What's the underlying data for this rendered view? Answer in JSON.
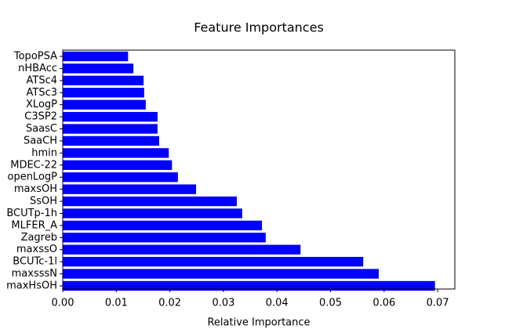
{
  "chart_data": {
    "type": "barh",
    "title": "Feature Importances",
    "x_label": "Relative Importance",
    "categories": [
      "TopoPSA",
      "nHBAcc",
      "ATSc4",
      "ATSc3",
      "XLogP",
      "C3SP2",
      "SaasC",
      "SaaCH",
      "hmin",
      "MDEC-22",
      "openLogP",
      "maxsOH",
      "SsOH",
      "BCUTp-1h",
      "MLFER_A",
      "Zagreb",
      "maxssO",
      "BCUTc-1l",
      "maxsssN",
      "maxHsOH"
    ],
    "values": [
      0.0122,
      0.0132,
      0.0151,
      0.0152,
      0.0155,
      0.0177,
      0.0177,
      0.018,
      0.0198,
      0.0204,
      0.0215,
      0.0249,
      0.0325,
      0.0335,
      0.0372,
      0.0379,
      0.0444,
      0.0561,
      0.059,
      0.0695
    ],
    "color": "#0000ff",
    "xlim": [
      0,
      0.0732
    ],
    "xticks": [
      {
        "value": 0,
        "label": "0.00"
      },
      {
        "value": 0.01,
        "label": "0.01"
      },
      {
        "value": 0.02,
        "label": "0.02"
      },
      {
        "value": 0.03,
        "label": "0.03"
      },
      {
        "value": 0.04,
        "label": "0.04"
      },
      {
        "value": 0.05,
        "label": "0.05"
      },
      {
        "value": 0.06,
        "label": "0.06"
      },
      {
        "value": 0.07,
        "label": "0.07"
      }
    ]
  }
}
